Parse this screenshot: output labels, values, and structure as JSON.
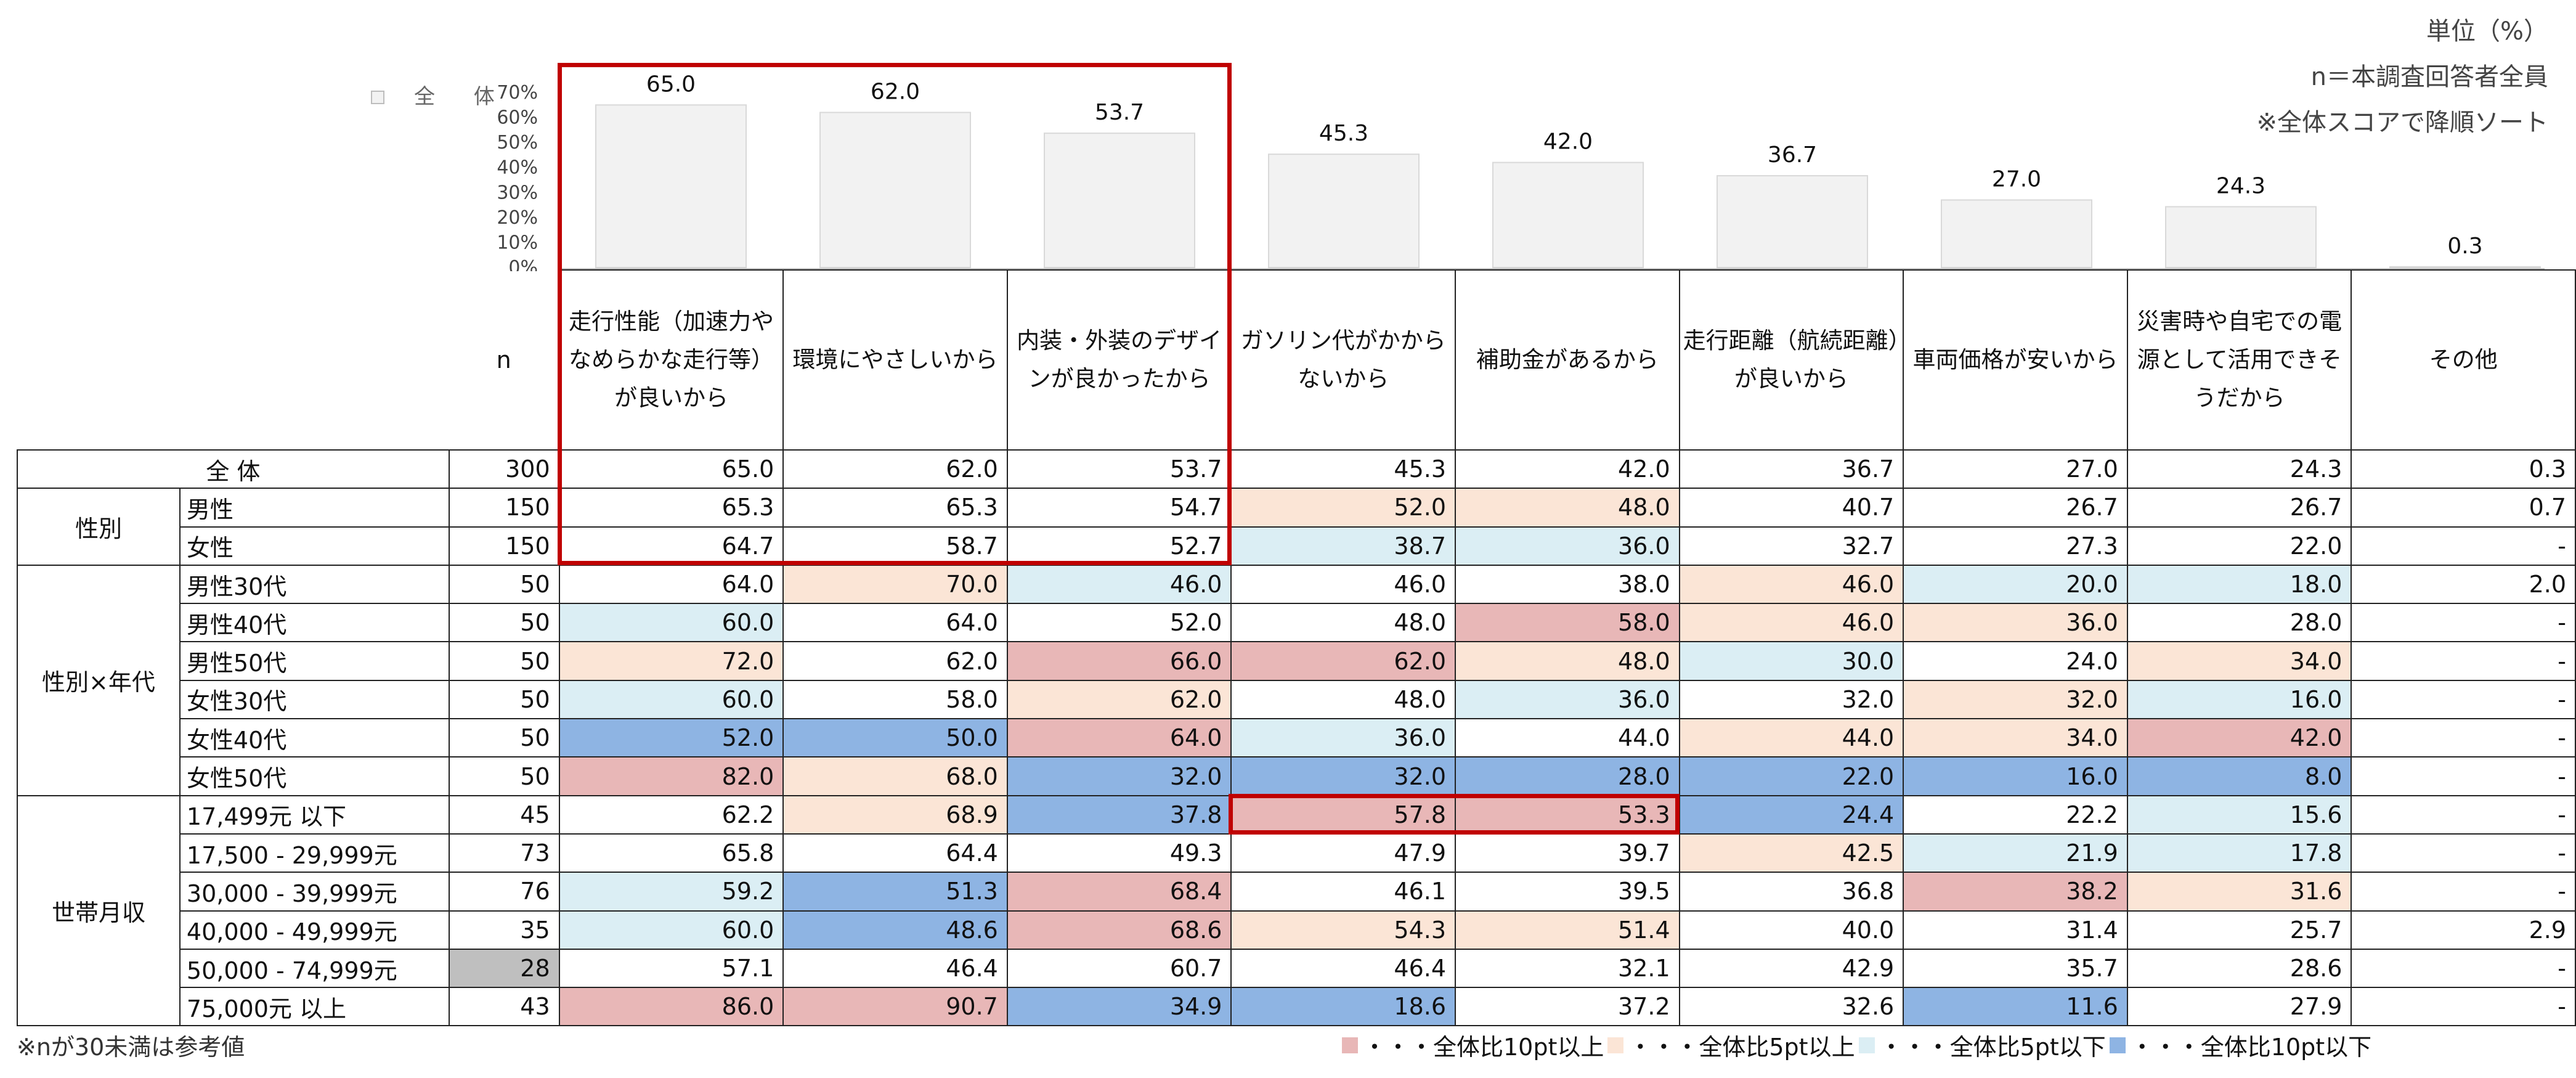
{
  "notes": {
    "unit": "単位（%）",
    "n_desc": "n＝本調査回答者全員",
    "sort_note": "※全体スコアで降順ソート"
  },
  "colors": {
    "high10": "#e8b7b7",
    "high5": "#fbe5d6",
    "low5": "#dbeef4",
    "low10": "#8eb4e3",
    "small_n": "#bfbfbf",
    "bar": "#f2f2f2",
    "bar_stroke": "#d9d9d9",
    "highlight": "#c00000"
  },
  "chart_data": {
    "type": "bar",
    "legend": "全 体",
    "categories": [
      "走行性能（加速力やなめらかな走行等）が良いから",
      "環境にやさしいから",
      "内装・外装のデザインが良かったから",
      "ガソリン代がかからないから",
      "補助金があるから",
      "走行距離（航続距離）が良いから",
      "車両価格が安いから",
      "災害時や自宅での電源として活用できそうだから",
      "その他"
    ],
    "values": [
      65.0,
      62.0,
      53.7,
      45.3,
      42.0,
      36.7,
      27.0,
      24.3,
      0.3
    ],
    "value_labels": [
      "65.0",
      "62.0",
      "53.7",
      "45.3",
      "42.0",
      "36.7",
      "27.0",
      "24.3",
      "0.3"
    ],
    "ylim": [
      0,
      70
    ],
    "yticks": [
      "70%",
      "60%",
      "50%",
      "40%",
      "30%",
      "20%",
      "10%",
      "0%"
    ]
  },
  "table": {
    "n_header": "n",
    "headers": [
      "走行性能（加速力やなめらかな走行等）が良いから",
      "環境にやさしいから",
      "内装・外装のデザインが良かったから",
      "ガソリン代がかからないから",
      "補助金があるから",
      "走行距離（航続距離）が良いから",
      "車両価格が安いから",
      "災害時や自宅での電源として活用できそうだから",
      "その他"
    ],
    "total_label": "全 体",
    "groups": [
      "性別",
      "性別×年代",
      "世帯月収"
    ],
    "rows": [
      {
        "label": "全 体",
        "n": "300",
        "values": [
          "65.0",
          "62.0",
          "53.7",
          "45.3",
          "42.0",
          "36.7",
          "27.0",
          "24.3",
          "0.3"
        ],
        "colors": [
          "",
          "",
          "",
          "",
          "",
          "",
          "",
          "",
          ""
        ]
      },
      {
        "label": "男性",
        "n": "150",
        "values": [
          "65.3",
          "65.3",
          "54.7",
          "52.0",
          "48.0",
          "40.7",
          "26.7",
          "26.7",
          "0.7"
        ],
        "colors": [
          "",
          "",
          "",
          "high5",
          "high5",
          "",
          "",
          "",
          ""
        ]
      },
      {
        "label": "女性",
        "n": "150",
        "values": [
          "64.7",
          "58.7",
          "52.7",
          "38.7",
          "36.0",
          "32.7",
          "27.3",
          "22.0",
          "-"
        ],
        "colors": [
          "",
          "",
          "",
          "low5",
          "low5",
          "",
          "",
          "",
          ""
        ]
      },
      {
        "label": "男性30代",
        "n": "50",
        "values": [
          "64.0",
          "70.0",
          "46.0",
          "46.0",
          "38.0",
          "46.0",
          "20.0",
          "18.0",
          "2.0"
        ],
        "colors": [
          "",
          "high5",
          "low5",
          "",
          "",
          "high5",
          "low5",
          "low5",
          ""
        ]
      },
      {
        "label": "男性40代",
        "n": "50",
        "values": [
          "60.0",
          "64.0",
          "52.0",
          "48.0",
          "58.0",
          "46.0",
          "36.0",
          "28.0",
          "-"
        ],
        "colors": [
          "low5",
          "",
          "",
          "",
          "high10",
          "high5",
          "high5",
          "",
          ""
        ]
      },
      {
        "label": "男性50代",
        "n": "50",
        "values": [
          "72.0",
          "62.0",
          "66.0",
          "62.0",
          "48.0",
          "30.0",
          "24.0",
          "34.0",
          "-"
        ],
        "colors": [
          "high5",
          "",
          "high10",
          "high10",
          "high5",
          "low5",
          "",
          "high5",
          ""
        ]
      },
      {
        "label": "女性30代",
        "n": "50",
        "values": [
          "60.0",
          "58.0",
          "62.0",
          "48.0",
          "36.0",
          "32.0",
          "32.0",
          "16.0",
          "-"
        ],
        "colors": [
          "low5",
          "",
          "high5",
          "",
          "low5",
          "",
          "high5",
          "low5",
          ""
        ]
      },
      {
        "label": "女性40代",
        "n": "50",
        "values": [
          "52.0",
          "50.0",
          "64.0",
          "36.0",
          "44.0",
          "44.0",
          "34.0",
          "42.0",
          "-"
        ],
        "colors": [
          "low10",
          "low10",
          "high10",
          "low5",
          "",
          "high5",
          "high5",
          "high10",
          ""
        ]
      },
      {
        "label": "女性50代",
        "n": "50",
        "values": [
          "82.0",
          "68.0",
          "32.0",
          "32.0",
          "28.0",
          "22.0",
          "16.0",
          "8.0",
          "-"
        ],
        "colors": [
          "high10",
          "high5",
          "low10",
          "low10",
          "low10",
          "low10",
          "low10",
          "low10",
          ""
        ]
      },
      {
        "label": "17,499元  以下",
        "n": "45",
        "values": [
          "62.2",
          "68.9",
          "37.8",
          "57.8",
          "53.3",
          "24.4",
          "22.2",
          "15.6",
          "-"
        ],
        "colors": [
          "",
          "high5",
          "low10",
          "high10",
          "high10",
          "low10",
          "",
          "low5",
          ""
        ]
      },
      {
        "label": "17,500  -  29,999元",
        "n": "73",
        "values": [
          "65.8",
          "64.4",
          "49.3",
          "47.9",
          "39.7",
          "42.5",
          "21.9",
          "17.8",
          "-"
        ],
        "colors": [
          "",
          "",
          "",
          "",
          "",
          "high5",
          "low5",
          "low5",
          ""
        ]
      },
      {
        "label": "30,000  -  39,999元",
        "n": "76",
        "values": [
          "59.2",
          "51.3",
          "68.4",
          "46.1",
          "39.5",
          "36.8",
          "38.2",
          "31.6",
          "-"
        ],
        "colors": [
          "low5",
          "low10",
          "high10",
          "",
          "",
          "",
          "high10",
          "high5",
          ""
        ]
      },
      {
        "label": "40,000  -  49,999元",
        "n": "35",
        "values": [
          "60.0",
          "48.6",
          "68.6",
          "54.3",
          "51.4",
          "40.0",
          "31.4",
          "25.7",
          "2.9"
        ],
        "colors": [
          "low5",
          "low10",
          "high10",
          "high5",
          "high5",
          "",
          "",
          "",
          ""
        ]
      },
      {
        "label": "50,000  -  74,999元",
        "n": "28",
        "n_small": true,
        "values": [
          "57.1",
          "46.4",
          "60.7",
          "46.4",
          "32.1",
          "42.9",
          "35.7",
          "28.6",
          "-"
        ],
        "colors": [
          "",
          "",
          "",
          "",
          "",
          "",
          "",
          "",
          ""
        ]
      },
      {
        "label": "75,000元  以上",
        "n": "43",
        "values": [
          "86.0",
          "90.7",
          "34.9",
          "18.6",
          "37.2",
          "32.6",
          "11.6",
          "27.9",
          "-"
        ],
        "colors": [
          "high10",
          "high10",
          "low10",
          "low10",
          "",
          "",
          "low10",
          "",
          ""
        ]
      }
    ]
  },
  "footnote": "※nが30未満は参考値",
  "legend": {
    "high10": "・・・全体比10pt以上",
    "high5": "・・・全体比5pt以上",
    "low5": "・・・全体比5pt以下",
    "low10": "・・・全体比10pt以下"
  }
}
